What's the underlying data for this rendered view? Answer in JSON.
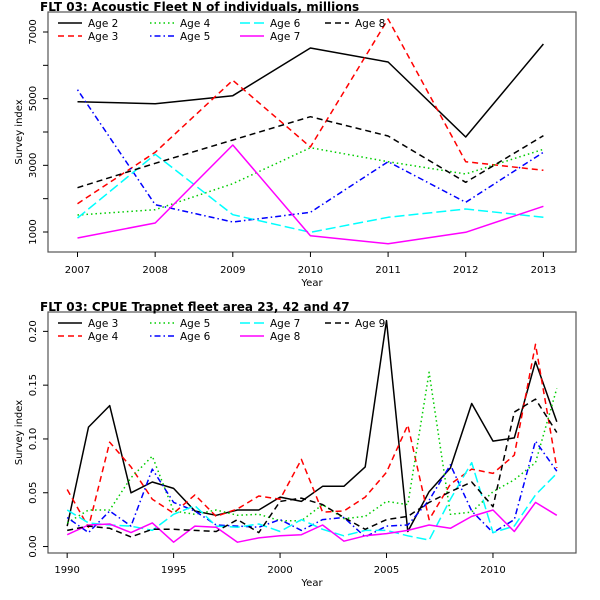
{
  "chart_data": [
    {
      "type": "line",
      "title": "FLT 03: Acoustic Fleet   N of individuals, millions",
      "xlabel": "Year",
      "ylabel": "Survey index",
      "x": [
        2007,
        2008,
        2009,
        2010,
        2011,
        2012,
        2013
      ],
      "xticks": [
        2007,
        2008,
        2009,
        2010,
        2011,
        2012,
        2013
      ],
      "yticks": [
        1000,
        2000,
        3000,
        4000,
        5000,
        6000,
        7000
      ],
      "ytick_labels": [
        "1000",
        "",
        "3000",
        "",
        "5000",
        "",
        "7000"
      ],
      "xlim": [
        2006.62,
        2013.42
      ],
      "ylim": [
        400,
        7600
      ],
      "grid": false,
      "legend_position": "top-left",
      "series": [
        {
          "name": "Age 2",
          "color": "#000000",
          "dash": "solid",
          "values": [
            4910,
            4850,
            5090,
            6520,
            6100,
            3850,
            6640
          ]
        },
        {
          "name": "Age 3",
          "color": "#ff0000",
          "dash": "dashed",
          "values": [
            1850,
            3390,
            5550,
            3550,
            7390,
            3110,
            2850
          ]
        },
        {
          "name": "Age 4",
          "color": "#00cd00",
          "dash": "dotted",
          "values": [
            1510,
            1670,
            2450,
            3530,
            3110,
            2740,
            3480
          ]
        },
        {
          "name": "Age 5",
          "color": "#0000ff",
          "dash": "dotdash",
          "values": [
            5270,
            1820,
            1300,
            1590,
            3110,
            1890,
            3390
          ]
        },
        {
          "name": "Age 6",
          "color": "#00ffff",
          "dash": "longdash",
          "values": [
            1420,
            3330,
            1520,
            990,
            1440,
            1690,
            1440
          ]
        },
        {
          "name": "Age 7",
          "color": "#ff00ff",
          "dash": "solid",
          "values": [
            820,
            1270,
            3610,
            890,
            650,
            990,
            1770
          ]
        },
        {
          "name": "Age 8",
          "color": "#000000",
          "dash": "dashed",
          "values": [
            2330,
            3060,
            3760,
            4460,
            3880,
            2490,
            3890
          ]
        }
      ]
    },
    {
      "type": "line",
      "title": "FLT 03: CPUE Trapnet fleet area 23, 42 and 47",
      "xlabel": "Year",
      "ylabel": "Survey index",
      "x": [
        1990,
        1991,
        1992,
        1993,
        1994,
        1995,
        1996,
        1997,
        1998,
        1999,
        2000,
        2001,
        2002,
        2003,
        2004,
        2005,
        2006,
        2007,
        2008,
        2009,
        2010,
        2011,
        2012,
        2013
      ],
      "xticks": [
        1990,
        1995,
        2000,
        2005,
        2010
      ],
      "yticks": [
        0.0,
        0.05,
        0.1,
        0.15,
        0.2
      ],
      "ytick_labels": [
        "0.00",
        "0.05",
        "0.10",
        "0.15",
        "0.20"
      ],
      "xlim": [
        1989.1,
        2013.9
      ],
      "ylim": [
        -0.006,
        0.218
      ],
      "grid": false,
      "legend_position": "top-left",
      "series": [
        {
          "name": "Age 3",
          "color": "#000000",
          "dash": "solid",
          "values": [
            0.019,
            0.111,
            0.131,
            0.05,
            0.06,
            0.054,
            0.033,
            0.029,
            0.034,
            0.034,
            0.046,
            0.042,
            0.056,
            0.056,
            0.074,
            0.21,
            0.014,
            0.051,
            0.073,
            0.133,
            0.098,
            0.101,
            0.172,
            0.116
          ]
        },
        {
          "name": "Age 4",
          "color": "#ff0000",
          "dash": "dashed",
          "values": [
            0.053,
            0.018,
            0.097,
            0.074,
            0.044,
            0.031,
            0.048,
            0.028,
            0.035,
            0.047,
            0.044,
            0.081,
            0.032,
            0.033,
            0.046,
            0.069,
            0.113,
            0.025,
            0.058,
            0.072,
            0.068,
            0.085,
            0.188,
            0.073
          ]
        },
        {
          "name": "Age 5",
          "color": "#00cd00",
          "dash": "dotted",
          "values": [
            0.022,
            0.034,
            0.034,
            0.064,
            0.084,
            0.033,
            0.03,
            0.034,
            0.029,
            0.03,
            0.024,
            0.024,
            0.039,
            0.026,
            0.028,
            0.042,
            0.039,
            0.162,
            0.03,
            0.032,
            0.051,
            0.062,
            0.078,
            0.147
          ]
        },
        {
          "name": "Age 6",
          "color": "#0000ff",
          "dash": "dotdash",
          "values": [
            0.027,
            0.013,
            0.033,
            0.019,
            0.072,
            0.041,
            0.033,
            0.02,
            0.019,
            0.018,
            0.025,
            0.015,
            0.025,
            0.027,
            0.009,
            0.019,
            0.02,
            0.043,
            0.076,
            0.033,
            0.013,
            0.025,
            0.098,
            0.07
          ]
        },
        {
          "name": "Age 7",
          "color": "#00ffff",
          "dash": "longdash",
          "values": [
            0.034,
            0.022,
            0.02,
            0.019,
            0.015,
            0.03,
            0.038,
            0.019,
            0.018,
            0.021,
            0.014,
            0.025,
            0.016,
            0.01,
            0.015,
            0.015,
            0.01,
            0.006,
            0.044,
            0.078,
            0.013,
            0.019,
            0.048,
            0.068
          ]
        },
        {
          "name": "Age 8",
          "color": "#ff00ff",
          "dash": "solid",
          "values": [
            0.011,
            0.02,
            0.021,
            0.013,
            0.022,
            0.004,
            0.019,
            0.018,
            0.004,
            0.008,
            0.01,
            0.011,
            0.02,
            0.005,
            0.01,
            0.012,
            0.015,
            0.02,
            0.017,
            0.028,
            0.034,
            0.014,
            0.041,
            0.029
          ]
        },
        {
          "name": "Age 9",
          "color": "#000000",
          "dash": "dashed",
          "values": [
            0.015,
            0.019,
            0.017,
            0.009,
            0.016,
            0.016,
            0.015,
            0.014,
            0.025,
            0.013,
            0.042,
            0.045,
            0.039,
            0.027,
            0.016,
            0.025,
            0.028,
            0.041,
            0.051,
            0.06,
            0.037,
            0.125,
            0.137,
            0.106
          ]
        }
      ]
    }
  ]
}
